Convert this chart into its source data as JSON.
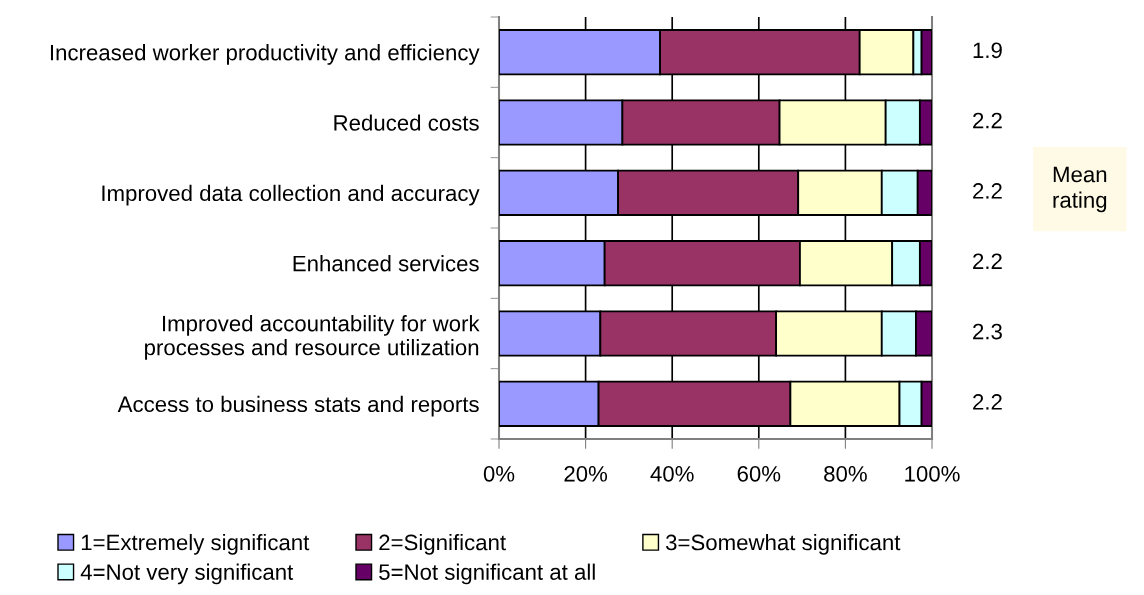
{
  "chart_data": {
    "type": "bar",
    "orientation": "horizontal",
    "stacked": true,
    "categories": [
      "Increased worker productivity and efficiency",
      "Reduced costs",
      "Improved data collection and accuracy",
      "Enhanced services",
      "Improved accountability for work\nprocesses and resource utilization",
      "Access to business stats and reports"
    ],
    "series": [
      {
        "name": "1=Extremely significant",
        "color": "#9999ff",
        "values": [
          37.2,
          28.5,
          27.5,
          24.4,
          23.4,
          23.0
        ]
      },
      {
        "name": "2=Significant",
        "color": "#993366",
        "values": [
          46.1,
          36.3,
          41.6,
          45.1,
          40.6,
          44.3
        ]
      },
      {
        "name": "3=Somewhat significant",
        "color": "#ffffcc",
        "values": [
          12.4,
          24.5,
          19.3,
          21.3,
          24.4,
          25.2
        ]
      },
      {
        "name": "4=Not very significant",
        "color": "#ccffff",
        "values": [
          1.9,
          7.9,
          8.3,
          6.4,
          7.9,
          5.1
        ]
      },
      {
        "name": "5=Not significant at all",
        "color": "#660066",
        "values": [
          2.4,
          2.8,
          3.3,
          2.8,
          3.7,
          2.4
        ]
      }
    ],
    "xlim": [
      0,
      100
    ],
    "xticks": [
      {
        "value": 0,
        "label": "0%"
      },
      {
        "value": 20,
        "label": "20%"
      },
      {
        "value": 40,
        "label": "40%"
      },
      {
        "value": 60,
        "label": "60%"
      },
      {
        "value": 80,
        "label": "80%"
      },
      {
        "value": 100,
        "label": "100%"
      }
    ],
    "grid": "x",
    "legend": "bottom",
    "annotations": [
      "1.9",
      "2.2",
      "2.2",
      "2.2",
      "2.3",
      "2.2",
      "Mean\nrating"
    ]
  }
}
